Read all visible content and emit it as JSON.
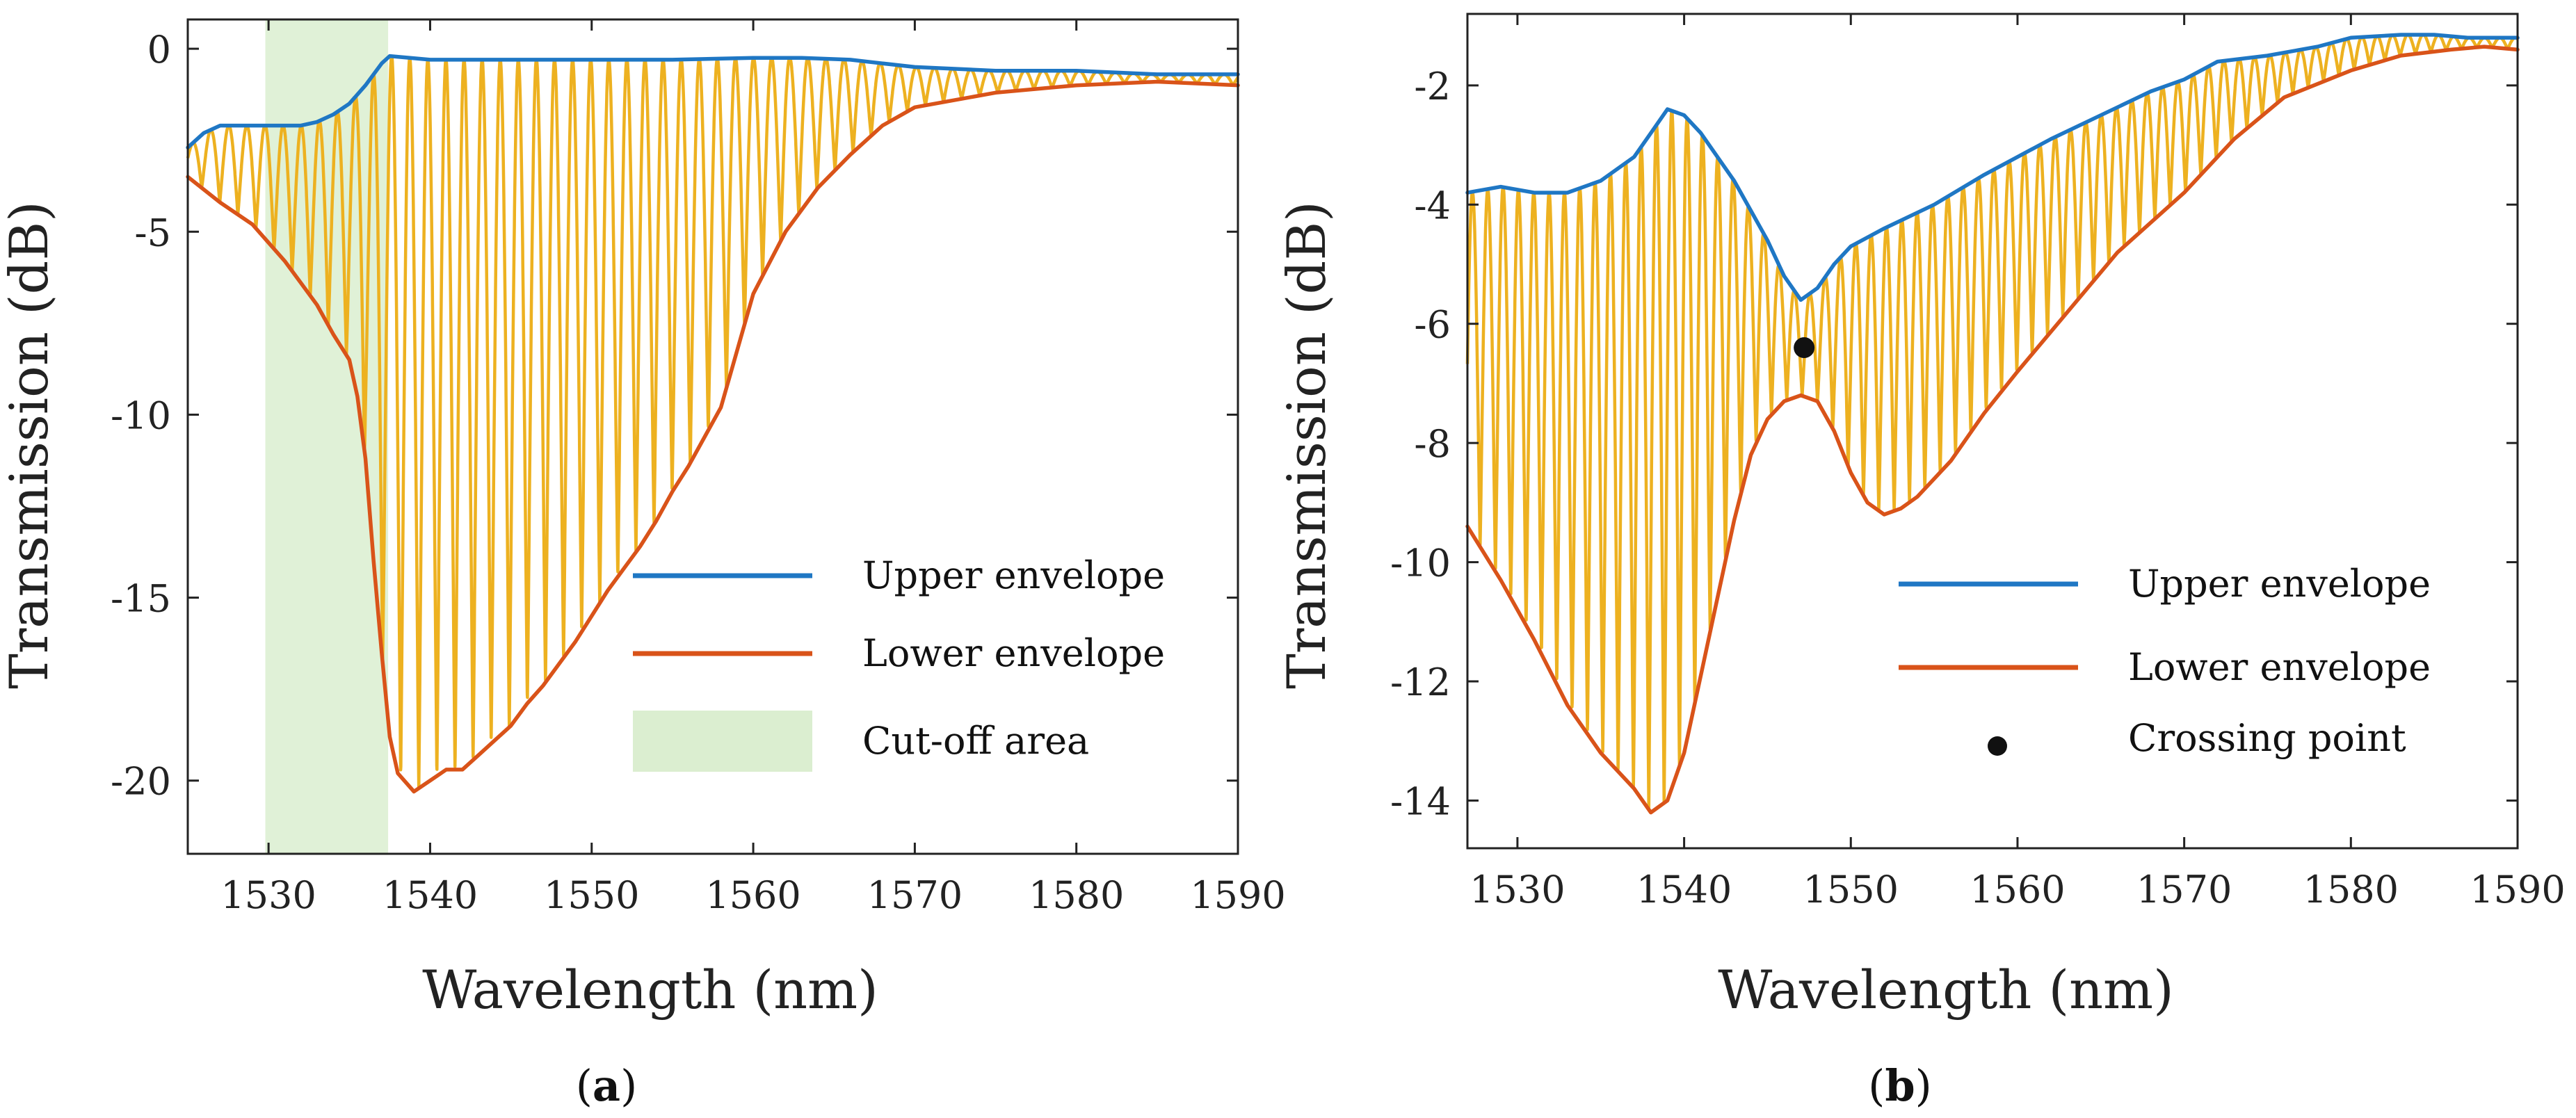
{
  "colors": {
    "upper": "#1f77c4",
    "lower": "#d95319",
    "trace": "#edb120",
    "cutoff": "#dbeed0",
    "point": "#111111",
    "axis": "#222222"
  },
  "chart_data": [
    {
      "type": "line",
      "panel_label_open": "(",
      "panel_label_letter": "a",
      "panel_label_close": ")",
      "xlabel": "Wavelength (nm)",
      "ylabel": "Transmission (dB)",
      "xlim": [
        1525,
        1590
      ],
      "ylim": [
        -22,
        0.8
      ],
      "xticks": [
        1530,
        1540,
        1550,
        1560,
        1570,
        1580,
        1590
      ],
      "yticks": [
        0,
        -5,
        -10,
        -15,
        -20
      ],
      "cutoff_region": [
        1529.8,
        1537.4
      ],
      "fringe_start": 1525.3,
      "fringe_period": 1.12,
      "legend": {
        "position": "lower-right",
        "entries": [
          {
            "label": "Upper envelope",
            "kind": "line",
            "color_key": "upper"
          },
          {
            "label": "Lower envelope",
            "kind": "line",
            "color_key": "lower"
          },
          {
            "label": "Cut-off area",
            "kind": "patch",
            "color_key": "cutoff"
          }
        ]
      },
      "series": [
        {
          "name": "Upper envelope",
          "color_key": "upper",
          "x": [
            1525,
            1526,
            1527,
            1528,
            1530,
            1532,
            1533,
            1534,
            1535,
            1536,
            1537,
            1537.5,
            1540,
            1545,
            1550,
            1555,
            1560,
            1563,
            1566,
            1568,
            1570,
            1575,
            1580,
            1585,
            1590
          ],
          "y": [
            -2.7,
            -2.3,
            -2.1,
            -2.1,
            -2.1,
            -2.1,
            -2.0,
            -1.8,
            -1.5,
            -1.0,
            -0.4,
            -0.2,
            -0.3,
            -0.3,
            -0.3,
            -0.3,
            -0.25,
            -0.25,
            -0.3,
            -0.4,
            -0.5,
            -0.6,
            -0.6,
            -0.7,
            -0.7
          ]
        },
        {
          "name": "Lower envelope",
          "color_key": "lower",
          "x": [
            1525,
            1527,
            1529,
            1531,
            1532,
            1533,
            1534,
            1535,
            1535.5,
            1536,
            1536.5,
            1537,
            1537.5,
            1538,
            1539,
            1540,
            1541,
            1542,
            1543,
            1544,
            1545,
            1546,
            1547,
            1548,
            1549,
            1550,
            1551,
            1552,
            1553,
            1554,
            1555,
            1556,
            1557,
            1558,
            1560,
            1562,
            1564,
            1566,
            1568,
            1570,
            1575,
            1580,
            1585,
            1590
          ],
          "y": [
            -3.5,
            -4.2,
            -4.8,
            -5.8,
            -6.4,
            -7.0,
            -7.8,
            -8.5,
            -9.5,
            -11.2,
            -14.0,
            -16.5,
            -18.8,
            -19.8,
            -20.3,
            -20.0,
            -19.7,
            -19.7,
            -19.3,
            -18.9,
            -18.5,
            -17.9,
            -17.4,
            -16.8,
            -16.2,
            -15.5,
            -14.8,
            -14.2,
            -13.6,
            -12.9,
            -12.1,
            -11.4,
            -10.6,
            -9.8,
            -6.7,
            -5.0,
            -3.8,
            -2.9,
            -2.1,
            -1.6,
            -1.2,
            -1.0,
            -0.9,
            -1.0
          ]
        }
      ]
    },
    {
      "type": "line",
      "panel_label_open": "(",
      "panel_label_letter": "b",
      "panel_label_close": ")",
      "xlabel": "Wavelength (nm)",
      "ylabel": "Transmission (dB)",
      "xlim": [
        1527,
        1590
      ],
      "ylim": [
        -14.8,
        -0.8
      ],
      "xticks": [
        1530,
        1540,
        1550,
        1560,
        1570,
        1580,
        1590
      ],
      "yticks": [
        -2,
        -4,
        -6,
        -8,
        -10,
        -12,
        -14
      ],
      "fringe_start": 1527.3,
      "fringe_period": 0.92,
      "crossing_point": {
        "x": 1547.2,
        "y": -6.4
      },
      "legend": {
        "position": "lower-right",
        "entries": [
          {
            "label": "Upper envelope",
            "kind": "line",
            "color_key": "upper"
          },
          {
            "label": "Lower envelope",
            "kind": "line",
            "color_key": "lower"
          },
          {
            "label": "Crossing point",
            "kind": "marker",
            "color_key": "point"
          }
        ]
      },
      "series": [
        {
          "name": "Upper envelope",
          "color_key": "upper",
          "x": [
            1527,
            1529,
            1531,
            1533,
            1535,
            1537,
            1538,
            1539,
            1540,
            1541,
            1542,
            1543,
            1544,
            1545,
            1546,
            1547,
            1548,
            1549,
            1550,
            1552,
            1555,
            1558,
            1560,
            1562,
            1565,
            1568,
            1570,
            1572,
            1575,
            1578,
            1580,
            1583,
            1585,
            1587,
            1590
          ],
          "y": [
            -3.8,
            -3.7,
            -3.8,
            -3.8,
            -3.6,
            -3.2,
            -2.8,
            -2.4,
            -2.5,
            -2.8,
            -3.2,
            -3.6,
            -4.1,
            -4.6,
            -5.2,
            -5.6,
            -5.4,
            -5.0,
            -4.7,
            -4.4,
            -4.0,
            -3.5,
            -3.2,
            -2.9,
            -2.5,
            -2.1,
            -1.9,
            -1.6,
            -1.5,
            -1.35,
            -1.2,
            -1.15,
            -1.15,
            -1.2,
            -1.2
          ]
        },
        {
          "name": "Lower envelope",
          "color_key": "lower",
          "x": [
            1527,
            1529,
            1531,
            1533,
            1535,
            1537,
            1538,
            1539,
            1540,
            1541,
            1542,
            1543,
            1544,
            1545,
            1546,
            1547,
            1548,
            1549,
            1550,
            1551,
            1552,
            1553,
            1554,
            1555,
            1556,
            1558,
            1560,
            1563,
            1566,
            1570,
            1573,
            1576,
            1580,
            1583,
            1586,
            1588,
            1590
          ],
          "y": [
            -9.4,
            -10.3,
            -11.3,
            -12.4,
            -13.2,
            -13.8,
            -14.2,
            -14.0,
            -13.2,
            -11.9,
            -10.6,
            -9.3,
            -8.2,
            -7.6,
            -7.3,
            -7.2,
            -7.3,
            -7.8,
            -8.5,
            -9.0,
            -9.2,
            -9.1,
            -8.9,
            -8.6,
            -8.3,
            -7.5,
            -6.8,
            -5.8,
            -4.8,
            -3.8,
            -2.9,
            -2.2,
            -1.75,
            -1.5,
            -1.4,
            -1.35,
            -1.4
          ]
        }
      ]
    }
  ]
}
